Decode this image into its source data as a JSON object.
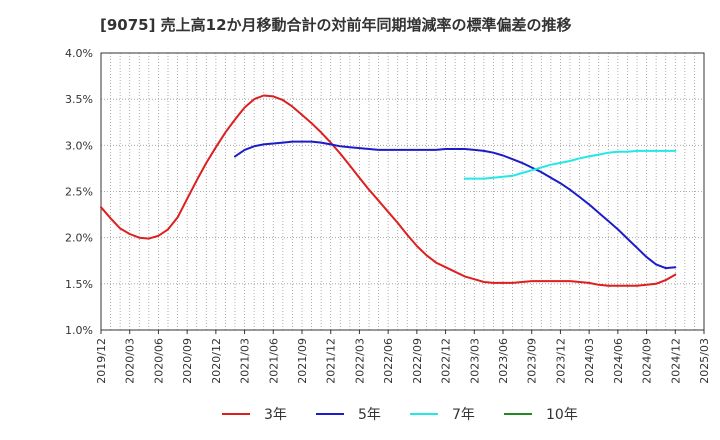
{
  "chart_data": {
    "type": "line",
    "title": "[9075]  売上高12か月移動合計の対前年同期増減率の標準偏差の推移",
    "xlabel": "",
    "ylabel": "",
    "ylim": [
      1.0,
      4.0
    ],
    "y_ticks": [
      "1.0%",
      "1.5%",
      "2.0%",
      "2.5%",
      "3.0%",
      "3.5%",
      "4.0%"
    ],
    "x_ticks": [
      "2019/12",
      "2020/03",
      "2020/06",
      "2020/09",
      "2020/12",
      "2021/03",
      "2021/06",
      "2021/09",
      "2021/12",
      "2022/03",
      "2022/06",
      "2022/09",
      "2022/12",
      "2023/03",
      "2023/06",
      "2023/09",
      "2023/12",
      "2024/03",
      "2024/06",
      "2024/09",
      "2024/12",
      "2025/03"
    ],
    "grid": true,
    "legend_position": "bottom",
    "series": [
      {
        "name": "3年",
        "color": "#dd1f1f",
        "x": [
          "2019/12",
          "2020/01",
          "2020/02",
          "2020/03",
          "2020/04",
          "2020/05",
          "2020/06",
          "2020/07",
          "2020/08",
          "2020/09",
          "2020/10",
          "2020/11",
          "2020/12",
          "2021/01",
          "2021/02",
          "2021/03",
          "2021/04",
          "2021/05",
          "2021/06",
          "2021/07",
          "2021/08",
          "2021/09",
          "2021/10",
          "2021/11",
          "2021/12",
          "2022/01",
          "2022/02",
          "2022/03",
          "2022/04",
          "2022/05",
          "2022/06",
          "2022/07",
          "2022/08",
          "2022/09",
          "2022/10",
          "2022/11",
          "2022/12",
          "2023/01",
          "2023/02",
          "2023/03",
          "2023/04",
          "2023/05",
          "2023/06",
          "2023/07",
          "2023/08",
          "2023/09",
          "2023/10",
          "2023/11",
          "2023/12",
          "2024/01",
          "2024/02",
          "2024/03",
          "2024/04",
          "2024/05",
          "2024/06",
          "2024/07",
          "2024/08",
          "2024/09",
          "2024/10",
          "2024/11",
          "2024/12"
        ],
        "values": [
          2.33,
          2.21,
          2.1,
          2.04,
          2.0,
          1.99,
          2.02,
          2.09,
          2.22,
          2.42,
          2.62,
          2.81,
          2.98,
          3.14,
          3.28,
          3.41,
          3.5,
          3.54,
          3.53,
          3.49,
          3.42,
          3.33,
          3.24,
          3.14,
          3.03,
          2.91,
          2.78,
          2.65,
          2.52,
          2.4,
          2.28,
          2.16,
          2.03,
          1.91,
          1.81,
          1.73,
          1.68,
          1.63,
          1.58,
          1.55,
          1.52,
          1.51,
          1.51,
          1.51,
          1.52,
          1.53,
          1.53,
          1.53,
          1.53,
          1.53,
          1.52,
          1.51,
          1.49,
          1.48,
          1.48,
          1.48,
          1.48,
          1.49,
          1.5,
          1.54,
          1.6
        ]
      },
      {
        "name": "5年",
        "color": "#1c1cc8",
        "x": [
          "2021/02",
          "2021/03",
          "2021/04",
          "2021/05",
          "2021/06",
          "2021/07",
          "2021/08",
          "2021/09",
          "2021/10",
          "2021/11",
          "2021/12",
          "2022/01",
          "2022/02",
          "2022/03",
          "2022/04",
          "2022/05",
          "2022/06",
          "2022/07",
          "2022/08",
          "2022/09",
          "2022/10",
          "2022/11",
          "2022/12",
          "2023/01",
          "2023/02",
          "2023/03",
          "2023/04",
          "2023/05",
          "2023/06",
          "2023/07",
          "2023/08",
          "2023/09",
          "2023/10",
          "2023/11",
          "2023/12",
          "2024/01",
          "2024/02",
          "2024/03",
          "2024/04",
          "2024/05",
          "2024/06",
          "2024/07",
          "2024/08",
          "2024/09",
          "2024/10",
          "2024/11",
          "2024/12"
        ],
        "values": [
          2.88,
          2.95,
          2.99,
          3.01,
          3.02,
          3.03,
          3.04,
          3.04,
          3.04,
          3.03,
          3.01,
          2.99,
          2.98,
          2.97,
          2.96,
          2.95,
          2.95,
          2.95,
          2.95,
          2.95,
          2.95,
          2.95,
          2.96,
          2.96,
          2.96,
          2.95,
          2.94,
          2.92,
          2.89,
          2.85,
          2.81,
          2.76,
          2.71,
          2.65,
          2.59,
          2.52,
          2.44,
          2.36,
          2.27,
          2.18,
          2.09,
          1.99,
          1.89,
          1.79,
          1.71,
          1.67,
          1.68
        ]
      },
      {
        "name": "7年",
        "color": "#22e8e8",
        "x": [
          "2023/02",
          "2023/03",
          "2023/04",
          "2023/05",
          "2023/06",
          "2023/07",
          "2023/08",
          "2023/09",
          "2023/10",
          "2023/11",
          "2023/12",
          "2024/01",
          "2024/02",
          "2024/03",
          "2024/04",
          "2024/05",
          "2024/06",
          "2024/07",
          "2024/08",
          "2024/09",
          "2024/10",
          "2024/11",
          "2024/12"
        ],
        "values": [
          2.64,
          2.64,
          2.64,
          2.65,
          2.66,
          2.67,
          2.7,
          2.73,
          2.76,
          2.79,
          2.81,
          2.83,
          2.86,
          2.88,
          2.9,
          2.92,
          2.93,
          2.93,
          2.94,
          2.94,
          2.94,
          2.94,
          2.94
        ]
      },
      {
        "name": "10年",
        "color": "#1f8a1f",
        "x": [],
        "values": []
      }
    ]
  }
}
